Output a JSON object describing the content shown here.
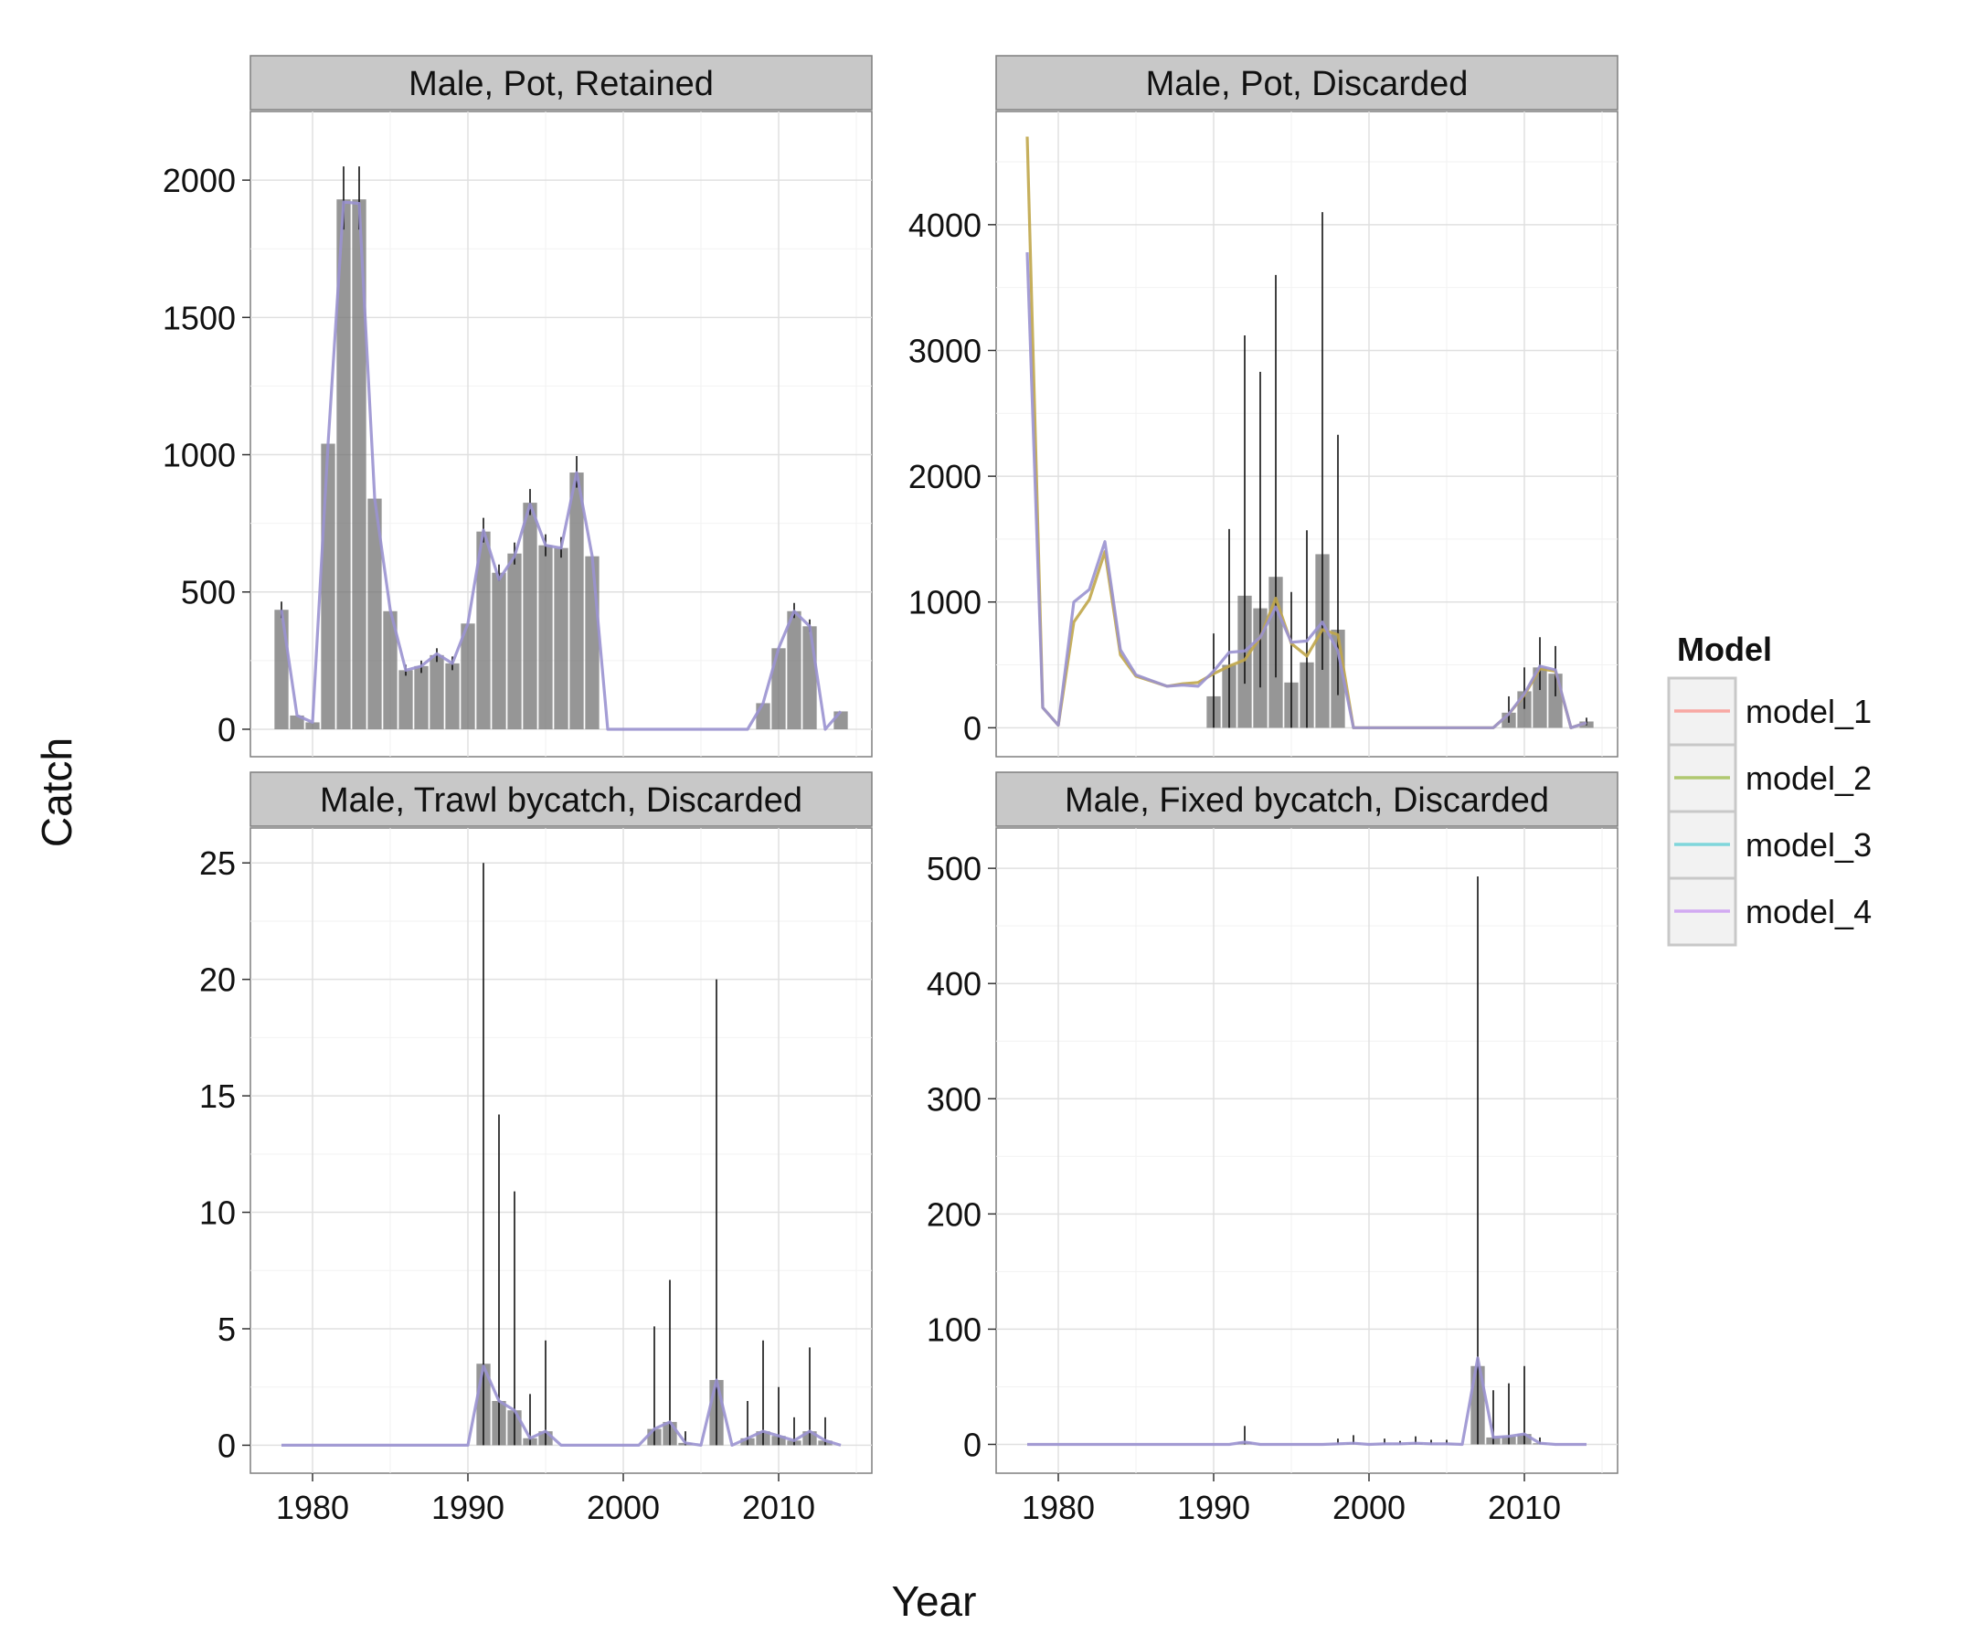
{
  "chart_data": {
    "type": "bar",
    "x_label": "Year",
    "y_label": "Catch",
    "legend": {
      "title": "Model",
      "position": "right",
      "items": [
        {
          "name": "model_1",
          "color": "#f8a8a3"
        },
        {
          "name": "model_2",
          "color": "#b0c870"
        },
        {
          "name": "model_3",
          "color": "#7fd6db"
        },
        {
          "name": "model_4",
          "color": "#d2aaf2"
        }
      ]
    },
    "x_range": [
      1976,
      2016
    ],
    "x_ticks": [
      1980,
      1990,
      2000,
      2010
    ],
    "grid": true,
    "panels": [
      {
        "title": "Male, Pot, Retained",
        "ylim": [
          -100,
          2250
        ],
        "y_ticks": [
          0,
          500,
          1000,
          1500,
          2000
        ],
        "observed": [
          {
            "x": 1978,
            "y": 435,
            "lo": 405,
            "hi": 465
          },
          {
            "x": 1979,
            "y": 50
          },
          {
            "x": 1980,
            "y": 25
          },
          {
            "x": 1981,
            "y": 1040
          },
          {
            "x": 1982,
            "y": 1930,
            "lo": 1820,
            "hi": 2050
          },
          {
            "x": 1983,
            "y": 1930,
            "lo": 1820,
            "hi": 2050
          },
          {
            "x": 1984,
            "y": 840
          },
          {
            "x": 1985,
            "y": 430
          },
          {
            "x": 1986,
            "y": 215,
            "lo": 195,
            "hi": 235
          },
          {
            "x": 1987,
            "y": 230,
            "lo": 205,
            "hi": 250
          },
          {
            "x": 1988,
            "y": 270,
            "lo": 245,
            "hi": 295
          },
          {
            "x": 1989,
            "y": 240,
            "lo": 215,
            "hi": 265
          },
          {
            "x": 1990,
            "y": 385
          },
          {
            "x": 1991,
            "y": 720,
            "lo": 680,
            "hi": 770
          },
          {
            "x": 1992,
            "y": 570,
            "lo": 540,
            "hi": 600
          },
          {
            "x": 1993,
            "y": 640,
            "lo": 600,
            "hi": 680
          },
          {
            "x": 1994,
            "y": 825,
            "lo": 780,
            "hi": 875
          },
          {
            "x": 1995,
            "y": 670,
            "lo": 630,
            "hi": 710
          },
          {
            "x": 1996,
            "y": 660,
            "lo": 625,
            "hi": 700
          },
          {
            "x": 1997,
            "y": 935,
            "lo": 880,
            "hi": 995
          },
          {
            "x": 1998,
            "y": 630
          },
          {
            "x": 2009,
            "y": 95
          },
          {
            "x": 2010,
            "y": 295
          },
          {
            "x": 2011,
            "y": 430,
            "lo": 405,
            "hi": 460
          },
          {
            "x": 2012,
            "y": 375,
            "lo": 355,
            "hi": 400
          },
          {
            "x": 2014,
            "y": 65
          }
        ],
        "model_fit": [
          [
            1978,
            435
          ],
          [
            1979,
            50
          ],
          [
            1980,
            25
          ],
          [
            1981,
            1040
          ],
          [
            1982,
            1920
          ],
          [
            1983,
            1915
          ],
          [
            1984,
            840
          ],
          [
            1985,
            435
          ],
          [
            1986,
            215
          ],
          [
            1987,
            230
          ],
          [
            1988,
            275
          ],
          [
            1989,
            240
          ],
          [
            1990,
            385
          ],
          [
            1991,
            725
          ],
          [
            1992,
            545
          ],
          [
            1993,
            630
          ],
          [
            1994,
            820
          ],
          [
            1995,
            670
          ],
          [
            1996,
            660
          ],
          [
            1997,
            935
          ],
          [
            1998,
            630
          ],
          [
            1999,
            0
          ],
          [
            2000,
            0
          ],
          [
            2001,
            0
          ],
          [
            2002,
            0
          ],
          [
            2003,
            0
          ],
          [
            2004,
            0
          ],
          [
            2005,
            0
          ],
          [
            2006,
            0
          ],
          [
            2007,
            0
          ],
          [
            2008,
            0
          ],
          [
            2009,
            95
          ],
          [
            2010,
            295
          ],
          [
            2011,
            430
          ],
          [
            2012,
            375
          ],
          [
            2013,
            0
          ],
          [
            2014,
            65
          ]
        ]
      },
      {
        "title": "Male, Pot, Discarded",
        "ylim": [
          -230,
          4900
        ],
        "y_ticks": [
          0,
          1000,
          2000,
          3000,
          4000
        ],
        "observed": [
          {
            "x": 1990,
            "y": 250,
            "lo": 0,
            "hi": 750
          },
          {
            "x": 1991,
            "y": 500,
            "lo": 0,
            "hi": 1580
          },
          {
            "x": 1992,
            "y": 1050,
            "lo": 350,
            "hi": 3120
          },
          {
            "x": 1993,
            "y": 950,
            "lo": 320,
            "hi": 2830
          },
          {
            "x": 1994,
            "y": 1200,
            "lo": 400,
            "hi": 3600
          },
          {
            "x": 1995,
            "y": 360,
            "lo": 0,
            "hi": 1080
          },
          {
            "x": 1996,
            "y": 520,
            "lo": 0,
            "hi": 1570
          },
          {
            "x": 1997,
            "y": 1380,
            "lo": 460,
            "hi": 4100
          },
          {
            "x": 1998,
            "y": 780,
            "lo": 260,
            "hi": 2330
          },
          {
            "x": 2009,
            "y": 120,
            "lo": 40,
            "hi": 250
          },
          {
            "x": 2010,
            "y": 290,
            "lo": 150,
            "hi": 480
          },
          {
            "x": 2011,
            "y": 480,
            "lo": 300,
            "hi": 720
          },
          {
            "x": 2012,
            "y": 430,
            "lo": 250,
            "hi": 650
          },
          {
            "x": 2014,
            "y": 50,
            "lo": 20,
            "hi": 80
          }
        ],
        "model_fit": [
          [
            1978,
            4700
          ],
          [
            1979,
            160
          ],
          [
            1980,
            20
          ],
          [
            1981,
            840
          ],
          [
            1982,
            1020
          ],
          [
            1983,
            1400
          ],
          [
            1984,
            580
          ],
          [
            1985,
            410
          ],
          [
            1986,
            370
          ],
          [
            1987,
            330
          ],
          [
            1988,
            350
          ],
          [
            1989,
            360
          ],
          [
            1990,
            430
          ],
          [
            1991,
            490
          ],
          [
            1992,
            540
          ],
          [
            1993,
            720
          ],
          [
            1994,
            1030
          ],
          [
            1995,
            670
          ],
          [
            1996,
            570
          ],
          [
            1997,
            780
          ],
          [
            1998,
            740
          ],
          [
            1999,
            0
          ],
          [
            2000,
            0
          ],
          [
            2001,
            0
          ],
          [
            2002,
            0
          ],
          [
            2003,
            0
          ],
          [
            2004,
            0
          ],
          [
            2005,
            0
          ],
          [
            2006,
            0
          ],
          [
            2007,
            0
          ],
          [
            2008,
            0
          ],
          [
            2009,
            110
          ],
          [
            2010,
            260
          ],
          [
            2011,
            470
          ],
          [
            2012,
            450
          ],
          [
            2013,
            0
          ],
          [
            2014,
            40
          ]
        ],
        "model_fit_alt": [
          [
            1978,
            3780
          ],
          [
            1979,
            160
          ],
          [
            1980,
            20
          ],
          [
            1981,
            1000
          ],
          [
            1982,
            1100
          ],
          [
            1983,
            1480
          ],
          [
            1984,
            620
          ],
          [
            1985,
            420
          ],
          [
            1986,
            375
          ],
          [
            1987,
            330
          ],
          [
            1988,
            340
          ],
          [
            1989,
            330
          ],
          [
            1990,
            450
          ],
          [
            1991,
            600
          ],
          [
            1992,
            610
          ],
          [
            1993,
            720
          ],
          [
            1994,
            960
          ],
          [
            1995,
            680
          ],
          [
            1996,
            690
          ],
          [
            1997,
            840
          ],
          [
            1998,
            610
          ],
          [
            1999,
            0
          ],
          [
            2000,
            0
          ],
          [
            2001,
            0
          ],
          [
            2002,
            0
          ],
          [
            2003,
            0
          ],
          [
            2004,
            0
          ],
          [
            2005,
            0
          ],
          [
            2006,
            0
          ],
          [
            2007,
            0
          ],
          [
            2008,
            0
          ],
          [
            2009,
            110
          ],
          [
            2010,
            270
          ],
          [
            2011,
            490
          ],
          [
            2012,
            460
          ],
          [
            2013,
            0
          ],
          [
            2014,
            40
          ]
        ]
      },
      {
        "title": "Male, Trawl bycatch, Discarded",
        "ylim": [
          -1.2,
          26.5
        ],
        "y_ticks": [
          0,
          5,
          10,
          15,
          20,
          25
        ],
        "observed": [
          {
            "x": 1991,
            "y": 3.5,
            "lo": 0,
            "hi": 25
          },
          {
            "x": 1992,
            "y": 1.9,
            "lo": 0,
            "hi": 14.2
          },
          {
            "x": 1993,
            "y": 1.5,
            "lo": 0,
            "hi": 10.9
          },
          {
            "x": 1994,
            "y": 0.3,
            "lo": 0,
            "hi": 2.2
          },
          {
            "x": 1995,
            "y": 0.6,
            "lo": 0,
            "hi": 4.5
          },
          {
            "x": 2002,
            "y": 0.7,
            "lo": 0,
            "hi": 5.1
          },
          {
            "x": 2003,
            "y": 1.0,
            "lo": 0,
            "hi": 7.1
          },
          {
            "x": 2004,
            "y": 0.1,
            "lo": 0,
            "hi": 0.6
          },
          {
            "x": 2006,
            "y": 2.8,
            "lo": 0,
            "hi": 20
          },
          {
            "x": 2008,
            "y": 0.3,
            "lo": 0,
            "hi": 1.9
          },
          {
            "x": 2009,
            "y": 0.6,
            "lo": 0,
            "hi": 4.5
          },
          {
            "x": 2010,
            "y": 0.4,
            "lo": 0,
            "hi": 2.5
          },
          {
            "x": 2011,
            "y": 0.2,
            "lo": 0,
            "hi": 1.2
          },
          {
            "x": 2012,
            "y": 0.6,
            "lo": 0,
            "hi": 4.2
          },
          {
            "x": 2013,
            "y": 0.2,
            "lo": 0,
            "hi": 1.2
          }
        ],
        "model_fit": [
          [
            1978,
            0
          ],
          [
            1979,
            0
          ],
          [
            1980,
            0
          ],
          [
            1981,
            0
          ],
          [
            1982,
            0
          ],
          [
            1983,
            0
          ],
          [
            1984,
            0
          ],
          [
            1985,
            0
          ],
          [
            1986,
            0
          ],
          [
            1987,
            0
          ],
          [
            1988,
            0
          ],
          [
            1989,
            0
          ],
          [
            1990,
            0
          ],
          [
            1991,
            3.4
          ],
          [
            1992,
            1.9
          ],
          [
            1993,
            1.5
          ],
          [
            1994,
            0.3
          ],
          [
            1995,
            0.6
          ],
          [
            1996,
            0
          ],
          [
            1997,
            0
          ],
          [
            1998,
            0
          ],
          [
            1999,
            0
          ],
          [
            2000,
            0
          ],
          [
            2001,
            0
          ],
          [
            2002,
            0.7
          ],
          [
            2003,
            1.0
          ],
          [
            2004,
            0.1
          ],
          [
            2005,
            0
          ],
          [
            2006,
            2.8
          ],
          [
            2007,
            0
          ],
          [
            2008,
            0.3
          ],
          [
            2009,
            0.6
          ],
          [
            2010,
            0.4
          ],
          [
            2011,
            0.2
          ],
          [
            2012,
            0.6
          ],
          [
            2013,
            0.2
          ],
          [
            2014,
            0
          ]
        ]
      },
      {
        "title": "Male, Fixed bycatch, Discarded",
        "ylim": [
          -25,
          535
        ],
        "y_ticks": [
          0,
          100,
          200,
          300,
          400,
          500
        ],
        "observed": [
          {
            "x": 1992,
            "y": 2,
            "lo": 0,
            "hi": 16
          },
          {
            "x": 1998,
            "y": 0.5,
            "lo": 0,
            "hi": 5
          },
          {
            "x": 1999,
            "y": 1,
            "lo": 0,
            "hi": 8
          },
          {
            "x": 2001,
            "y": 0.5,
            "lo": 0,
            "hi": 5
          },
          {
            "x": 2002,
            "y": 0.5,
            "lo": 0,
            "hi": 3
          },
          {
            "x": 2003,
            "y": 1,
            "lo": 0,
            "hi": 7
          },
          {
            "x": 2004,
            "y": 0.5,
            "lo": 0,
            "hi": 4
          },
          {
            "x": 2005,
            "y": 0.5,
            "lo": 0,
            "hi": 4
          },
          {
            "x": 2007,
            "y": 68,
            "lo": 0,
            "hi": 493
          },
          {
            "x": 2008,
            "y": 6,
            "lo": 0,
            "hi": 47
          },
          {
            "x": 2009,
            "y": 7,
            "lo": 0,
            "hi": 53
          },
          {
            "x": 2010,
            "y": 9,
            "lo": 0,
            "hi": 68
          },
          {
            "x": 2011,
            "y": 1,
            "lo": 0,
            "hi": 6
          }
        ],
        "model_fit": [
          [
            1978,
            0
          ],
          [
            1979,
            0
          ],
          [
            1980,
            0
          ],
          [
            1981,
            0
          ],
          [
            1982,
            0
          ],
          [
            1983,
            0
          ],
          [
            1984,
            0
          ],
          [
            1985,
            0
          ],
          [
            1986,
            0
          ],
          [
            1987,
            0
          ],
          [
            1988,
            0
          ],
          [
            1989,
            0
          ],
          [
            1990,
            0
          ],
          [
            1991,
            0
          ],
          [
            1992,
            2
          ],
          [
            1993,
            0
          ],
          [
            1994,
            0
          ],
          [
            1995,
            0
          ],
          [
            1996,
            0
          ],
          [
            1997,
            0
          ],
          [
            1998,
            0.5
          ],
          [
            1999,
            1
          ],
          [
            2000,
            0
          ],
          [
            2001,
            0.5
          ],
          [
            2002,
            0.5
          ],
          [
            2003,
            1
          ],
          [
            2004,
            0.5
          ],
          [
            2005,
            0.5
          ],
          [
            2006,
            0
          ],
          [
            2007,
            75
          ],
          [
            2008,
            6
          ],
          [
            2009,
            7
          ],
          [
            2010,
            9
          ],
          [
            2011,
            1
          ],
          [
            2012,
            0
          ],
          [
            2013,
            0
          ],
          [
            2014,
            0
          ]
        ]
      }
    ]
  }
}
